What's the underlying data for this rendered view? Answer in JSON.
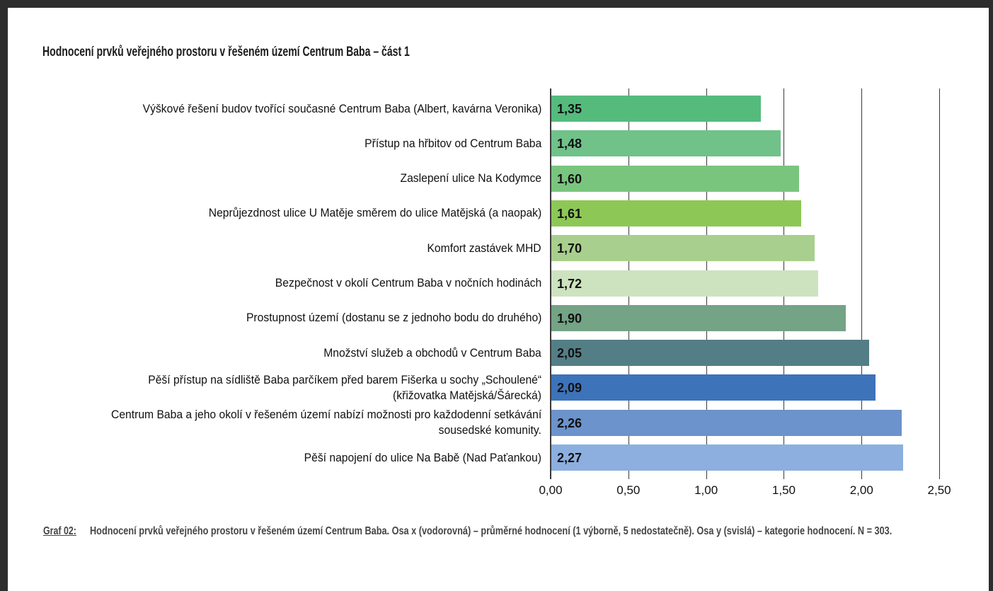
{
  "page": {
    "title": "Hodnocení prvků veřejného prostoru v řešeném území Centrum Baba – část 1",
    "caption_label": "Graf 02:",
    "caption_text": "Hodnocení prvků veřejného prostoru v řešeném území Centrum Baba. Osa x (vodorovná) – průměrné hodnocení (1 výborně, 5 nedostatečně). Osa y (svislá) – kategorie hodnocení. N = 303."
  },
  "chart_data": {
    "type": "bar",
    "orientation": "horizontal",
    "title": "Hodnocení prvků veřejného prostoru v řešeném území Centrum Baba – část 1",
    "categories": [
      "Výškové řešení budov tvořící současné Centrum Baba (Albert, kavárna Veronika)",
      "Přístup na hřbitov od Centrum Baba",
      "Zaslepení ulice Na Kodymce",
      "Neprůjezdnost ulice U Matěje směrem do ulice Matějská (a naopak)",
      "Komfort zastávek MHD",
      "Bezpečnost v okolí Centrum Baba v nočních hodinách",
      "Prostupnost území (dostanu se z jednoho bodu do druhého)",
      "Množství služeb a obchodů v Centrum Baba",
      "Pěší přístup na sídliště Baba parčíkem před barem Fišerka u sochy „Schoulené“ (křižovatka Matějská/Šárecká)",
      "Centrum Baba a jeho okolí v řešeném území nabízí možnosti pro každodenní setkávání sousedské komunity.",
      "Pěší napojení do ulice Na Babě (Nad Paťankou)"
    ],
    "category_lines": [
      [
        "Výškové řešení budov tvořící současné Centrum Baba (Albert, kavárna Veronika)"
      ],
      [
        "Přístup na hřbitov od Centrum Baba"
      ],
      [
        "Zaslepení ulice Na Kodymce"
      ],
      [
        "Neprůjezdnost ulice U Matěje směrem do ulice Matějská (a naopak)"
      ],
      [
        "Komfort zastávek MHD"
      ],
      [
        "Bezpečnost v okolí Centrum Baba v nočních hodinách"
      ],
      [
        "Prostupnost území (dostanu se z jednoho bodu do druhého)"
      ],
      [
        "Množství služeb a obchodů v Centrum Baba"
      ],
      [
        "Pěší přístup na sídliště Baba parčíkem před barem Fišerka u sochy „Schoulené“",
        "(křižovatka Matějská/Šárecká)"
      ],
      [
        "Centrum Baba a jeho okolí v řešeném území nabízí možnosti pro každodenní setkávání",
        "sousedské komunity."
      ],
      [
        "Pěší napojení do ulice Na Babě (Nad Paťankou)"
      ]
    ],
    "values": [
      1.35,
      1.48,
      1.6,
      1.61,
      1.7,
      1.72,
      1.9,
      2.05,
      2.09,
      2.26,
      2.27
    ],
    "value_labels": [
      "1,35",
      "1,48",
      "1,60",
      "1,61",
      "1,70",
      "1,72",
      "1,90",
      "2,05",
      "2,09",
      "2,26",
      "2,27"
    ],
    "bar_colors": [
      "#55bb7d",
      "#70c289",
      "#79c57e",
      "#8dc856",
      "#a8cf8e",
      "#cde3bf",
      "#74a386",
      "#547e86",
      "#3d73b9",
      "#6c93cb",
      "#8cafdf"
    ],
    "xlim": [
      0,
      2.5
    ],
    "x_ticks": [
      0,
      0.5,
      1.0,
      1.5,
      2.0,
      2.5
    ],
    "x_tick_labels": [
      "0,00",
      "0,50",
      "1,00",
      "1,50",
      "2,00",
      "2,50"
    ],
    "grid": true,
    "legend": false,
    "xlabel": "",
    "ylabel": ""
  }
}
